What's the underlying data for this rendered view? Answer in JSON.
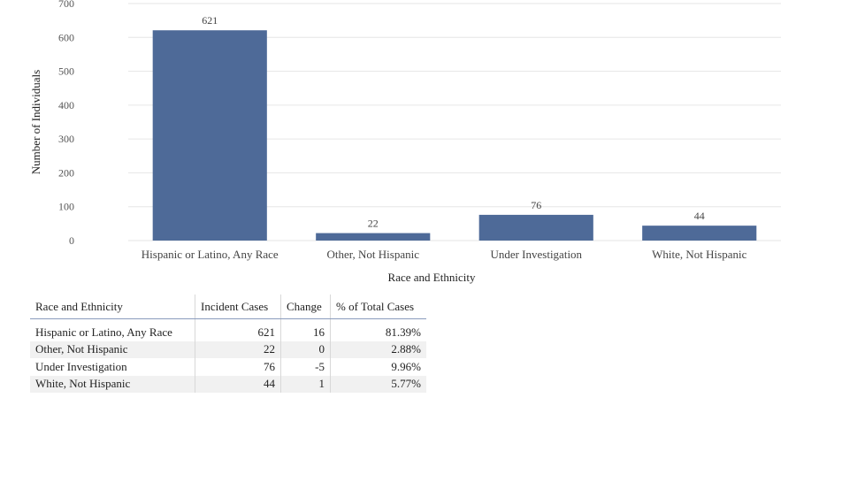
{
  "chart_data": {
    "type": "bar",
    "categories": [
      "Hispanic or Latino, Any Race",
      "Other, Not Hispanic",
      "Under Investigation",
      "White, Not Hispanic"
    ],
    "values": [
      621,
      22,
      76,
      44
    ],
    "data_labels": [
      "621",
      "22",
      "76",
      "44"
    ],
    "xlabel": "Race and Ethnicity",
    "ylabel": "Number of Individuals",
    "ylim": [
      0,
      700
    ],
    "yticks": [
      0,
      100,
      200,
      300,
      400,
      500,
      600,
      700
    ],
    "grid": true,
    "bar_color": "#4e6a98"
  },
  "table": {
    "headers": [
      "Race and Ethnicity",
      "Incident Cases",
      "Change",
      "% of Total Cases"
    ],
    "rows": [
      [
        "Hispanic or Latino, Any Race",
        "621",
        "16",
        "81.39%"
      ],
      [
        "Other, Not Hispanic",
        "22",
        "0",
        "2.88%"
      ],
      [
        "Under Investigation",
        "76",
        "-5",
        "9.96%"
      ],
      [
        "White, Not Hispanic",
        "44",
        "1",
        "5.77%"
      ]
    ]
  }
}
